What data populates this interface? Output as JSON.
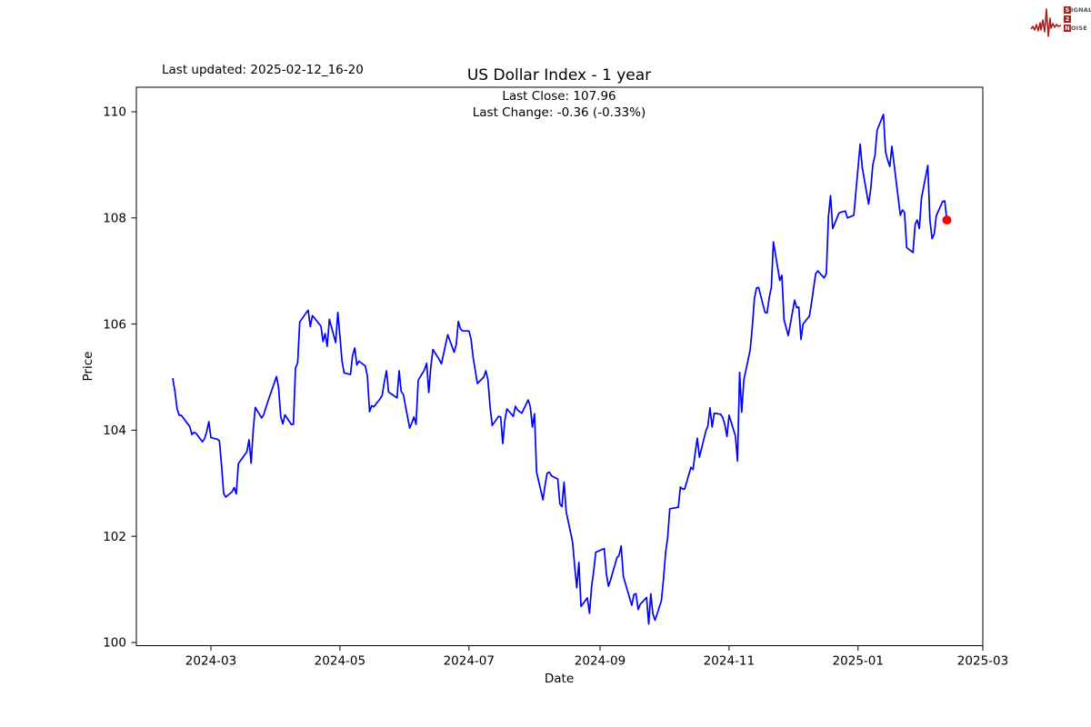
{
  "logo": {
    "name": "Signal 2 Noise",
    "color": "#a82121",
    "lines": [
      {
        "boxed": "S",
        "rest": "IGNAL"
      },
      {
        "boxed": "2",
        "rest": ""
      },
      {
        "boxed": "N",
        "rest": "OISE"
      }
    ]
  },
  "chart_data": {
    "type": "line",
    "title": "US Dollar Index - 1 year",
    "subtitle_lines": [
      "Last Close: 107.96",
      "Last Change: -0.36 (-0.33%)"
    ],
    "last_updated_label": "Last updated: 2025-02-12_16-20",
    "xlabel": "Date",
    "ylabel": "Price",
    "x_tick_labels": [
      "2024-03",
      "2024-05",
      "2024-07",
      "2024-09",
      "2024-11",
      "2025-01",
      "2025-03"
    ],
    "y_ticks": [
      100,
      102,
      104,
      106,
      108,
      110
    ],
    "ylim": [
      99.94,
      110.46
    ],
    "xlim": [
      "2024-01-26",
      "2025-03-01"
    ],
    "grid": false,
    "legend": false,
    "line_color": "#0000ff",
    "marker_color": "#ff0000",
    "last_close": 107.96,
    "last_change_abs": -0.36,
    "last_change_pct": -0.33,
    "series": [
      {
        "name": "US Dollar Index",
        "dates": [
          "2024-02-12",
          "2024-02-13",
          "2024-02-14",
          "2024-02-15",
          "2024-02-16",
          "2024-02-20",
          "2024-02-21",
          "2024-02-22",
          "2024-02-23",
          "2024-02-26",
          "2024-02-27",
          "2024-02-28",
          "2024-02-29",
          "2024-03-01",
          "2024-03-04",
          "2024-03-05",
          "2024-03-06",
          "2024-03-07",
          "2024-03-08",
          "2024-03-11",
          "2024-03-12",
          "2024-03-13",
          "2024-03-14",
          "2024-03-15",
          "2024-03-18",
          "2024-03-19",
          "2024-03-20",
          "2024-03-21",
          "2024-03-22",
          "2024-03-25",
          "2024-03-26",
          "2024-03-27",
          "2024-03-28",
          "2024-04-01",
          "2024-04-02",
          "2024-04-03",
          "2024-04-04",
          "2024-04-05",
          "2024-04-08",
          "2024-04-09",
          "2024-04-10",
          "2024-04-11",
          "2024-04-12",
          "2024-04-15",
          "2024-04-16",
          "2024-04-17",
          "2024-04-18",
          "2024-04-19",
          "2024-04-22",
          "2024-04-23",
          "2024-04-24",
          "2024-04-25",
          "2024-04-26",
          "2024-04-29",
          "2024-04-30",
          "2024-05-01",
          "2024-05-02",
          "2024-05-03",
          "2024-05-06",
          "2024-05-07",
          "2024-05-08",
          "2024-05-09",
          "2024-05-10",
          "2024-05-13",
          "2024-05-14",
          "2024-05-15",
          "2024-05-16",
          "2024-05-17",
          "2024-05-20",
          "2024-05-21",
          "2024-05-22",
          "2024-05-23",
          "2024-05-24",
          "2024-05-28",
          "2024-05-29",
          "2024-05-30",
          "2024-05-31",
          "2024-06-03",
          "2024-06-04",
          "2024-06-05",
          "2024-06-06",
          "2024-06-07",
          "2024-06-10",
          "2024-06-11",
          "2024-06-12",
          "2024-06-13",
          "2024-06-14",
          "2024-06-17",
          "2024-06-18",
          "2024-06-20",
          "2024-06-21",
          "2024-06-24",
          "2024-06-25",
          "2024-06-26",
          "2024-06-27",
          "2024-06-28",
          "2024-07-01",
          "2024-07-02",
          "2024-07-03",
          "2024-07-05",
          "2024-07-08",
          "2024-07-09",
          "2024-07-10",
          "2024-07-11",
          "2024-07-12",
          "2024-07-15",
          "2024-07-16",
          "2024-07-17",
          "2024-07-18",
          "2024-07-19",
          "2024-07-22",
          "2024-07-23",
          "2024-07-24",
          "2024-07-25",
          "2024-07-26",
          "2024-07-29",
          "2024-07-30",
          "2024-07-31",
          "2024-08-01",
          "2024-08-02",
          "2024-08-05",
          "2024-08-06",
          "2024-08-07",
          "2024-08-08",
          "2024-08-09",
          "2024-08-12",
          "2024-08-13",
          "2024-08-14",
          "2024-08-15",
          "2024-08-16",
          "2024-08-19",
          "2024-08-20",
          "2024-08-21",
          "2024-08-22",
          "2024-08-23",
          "2024-08-26",
          "2024-08-27",
          "2024-08-28",
          "2024-08-29",
          "2024-08-30",
          "2024-09-03",
          "2024-09-04",
          "2024-09-05",
          "2024-09-06",
          "2024-09-09",
          "2024-09-10",
          "2024-09-11",
          "2024-09-12",
          "2024-09-13",
          "2024-09-16",
          "2024-09-17",
          "2024-09-18",
          "2024-09-19",
          "2024-09-20",
          "2024-09-23",
          "2024-09-24",
          "2024-09-25",
          "2024-09-26",
          "2024-09-27",
          "2024-09-30",
          "2024-10-01",
          "2024-10-02",
          "2024-10-03",
          "2024-10-04",
          "2024-10-07",
          "2024-10-08",
          "2024-10-09",
          "2024-10-10",
          "2024-10-11",
          "2024-10-14",
          "2024-10-15",
          "2024-10-16",
          "2024-10-17",
          "2024-10-18",
          "2024-10-21",
          "2024-10-22",
          "2024-10-23",
          "2024-10-24",
          "2024-10-25",
          "2024-10-28",
          "2024-10-29",
          "2024-10-30",
          "2024-10-31",
          "2024-11-01",
          "2024-11-04",
          "2024-11-05",
          "2024-11-06",
          "2024-11-07",
          "2024-11-08",
          "2024-11-11",
          "2024-11-12",
          "2024-11-13",
          "2024-11-14",
          "2024-11-15",
          "2024-11-18",
          "2024-11-19",
          "2024-11-20",
          "2024-11-21",
          "2024-11-22",
          "2024-11-25",
          "2024-11-26",
          "2024-11-27",
          "2024-11-29",
          "2024-12-02",
          "2024-12-03",
          "2024-12-04",
          "2024-12-05",
          "2024-12-06",
          "2024-12-09",
          "2024-12-10",
          "2024-12-11",
          "2024-12-12",
          "2024-12-13",
          "2024-12-16",
          "2024-12-17",
          "2024-12-18",
          "2024-12-19",
          "2024-12-20",
          "2024-12-23",
          "2024-12-24",
          "2024-12-26",
          "2024-12-27",
          "2024-12-30",
          "2024-12-31",
          "2025-01-02",
          "2025-01-03",
          "2025-01-06",
          "2025-01-07",
          "2025-01-08",
          "2025-01-09",
          "2025-01-10",
          "2025-01-13",
          "2025-01-14",
          "2025-01-15",
          "2025-01-16",
          "2025-01-17",
          "2025-01-21",
          "2025-01-22",
          "2025-01-23",
          "2025-01-24",
          "2025-01-27",
          "2025-01-28",
          "2025-01-29",
          "2025-01-30",
          "2025-01-31",
          "2025-02-03",
          "2025-02-04",
          "2025-02-05",
          "2025-02-06",
          "2025-02-07",
          "2025-02-10",
          "2025-02-11",
          "2025-02-12"
        ],
        "values": [
          104.97,
          104.72,
          104.4,
          104.28,
          104.28,
          104.07,
          103.92,
          103.96,
          103.94,
          103.78,
          103.84,
          103.97,
          104.16,
          103.86,
          103.83,
          103.8,
          103.36,
          102.81,
          102.74,
          102.84,
          102.92,
          102.8,
          103.37,
          103.43,
          103.59,
          103.82,
          103.38,
          104.0,
          104.43,
          104.23,
          104.3,
          104.43,
          104.55,
          105.01,
          104.81,
          104.25,
          104.12,
          104.29,
          104.11,
          104.11,
          105.17,
          105.27,
          106.04,
          106.21,
          106.26,
          105.95,
          106.16,
          106.11,
          105.96,
          105.67,
          105.82,
          105.58,
          106.09,
          105.65,
          106.22,
          105.77,
          105.3,
          105.08,
          105.05,
          105.41,
          105.55,
          105.23,
          105.3,
          105.21,
          105.02,
          104.35,
          104.46,
          104.44,
          104.59,
          104.66,
          104.91,
          105.12,
          104.72,
          104.61,
          105.12,
          104.73,
          104.67,
          104.04,
          104.14,
          104.25,
          104.11,
          104.94,
          105.14,
          105.26,
          104.71,
          105.2,
          105.52,
          105.33,
          105.25,
          105.62,
          105.8,
          105.47,
          105.61,
          106.05,
          105.91,
          105.87,
          105.87,
          105.72,
          105.37,
          104.88,
          105.0,
          105.12,
          104.95,
          104.45,
          104.09,
          104.26,
          104.25,
          103.75,
          104.19,
          104.4,
          104.26,
          104.45,
          104.38,
          104.35,
          104.32,
          104.57,
          104.45,
          104.06,
          104.31,
          103.21,
          102.69,
          102.96,
          103.19,
          103.21,
          103.14,
          103.08,
          102.61,
          102.56,
          103.02,
          102.46,
          101.89,
          101.44,
          101.03,
          101.51,
          100.68,
          100.84,
          100.55,
          101.05,
          101.35,
          101.7,
          101.77,
          101.29,
          101.06,
          101.18,
          101.6,
          101.64,
          101.82,
          101.25,
          101.11,
          100.7,
          100.9,
          100.92,
          100.62,
          100.72,
          100.85,
          100.35,
          100.92,
          100.54,
          100.42,
          100.78,
          101.2,
          101.69,
          101.98,
          102.52,
          102.54,
          102.55,
          102.93,
          102.89,
          102.89,
          103.3,
          103.26,
          103.58,
          103.85,
          103.49,
          103.98,
          104.08,
          104.42,
          104.06,
          104.32,
          104.3,
          104.24,
          104.11,
          103.88,
          104.28,
          103.89,
          103.42,
          105.09,
          104.34,
          104.95,
          105.51,
          105.95,
          106.48,
          106.68,
          106.69,
          106.22,
          106.21,
          106.5,
          106.69,
          107.55,
          106.82,
          106.92,
          106.08,
          105.78,
          106.45,
          106.31,
          106.32,
          105.71,
          106.0,
          106.15,
          106.4,
          106.68,
          106.95,
          107.0,
          106.87,
          106.95,
          108.02,
          108.42,
          107.8,
          108.09,
          108.11,
          108.13,
          108.0,
          108.05,
          108.49,
          109.39,
          108.95,
          108.26,
          108.54,
          109.0,
          109.18,
          109.65,
          109.95,
          109.25,
          109.09,
          108.97,
          109.35,
          108.05,
          108.15,
          108.1,
          107.44,
          107.35,
          107.88,
          107.96,
          107.8,
          108.37,
          108.99,
          107.96,
          107.61,
          107.69,
          108.04,
          108.31,
          108.32,
          107.96
        ]
      }
    ]
  }
}
